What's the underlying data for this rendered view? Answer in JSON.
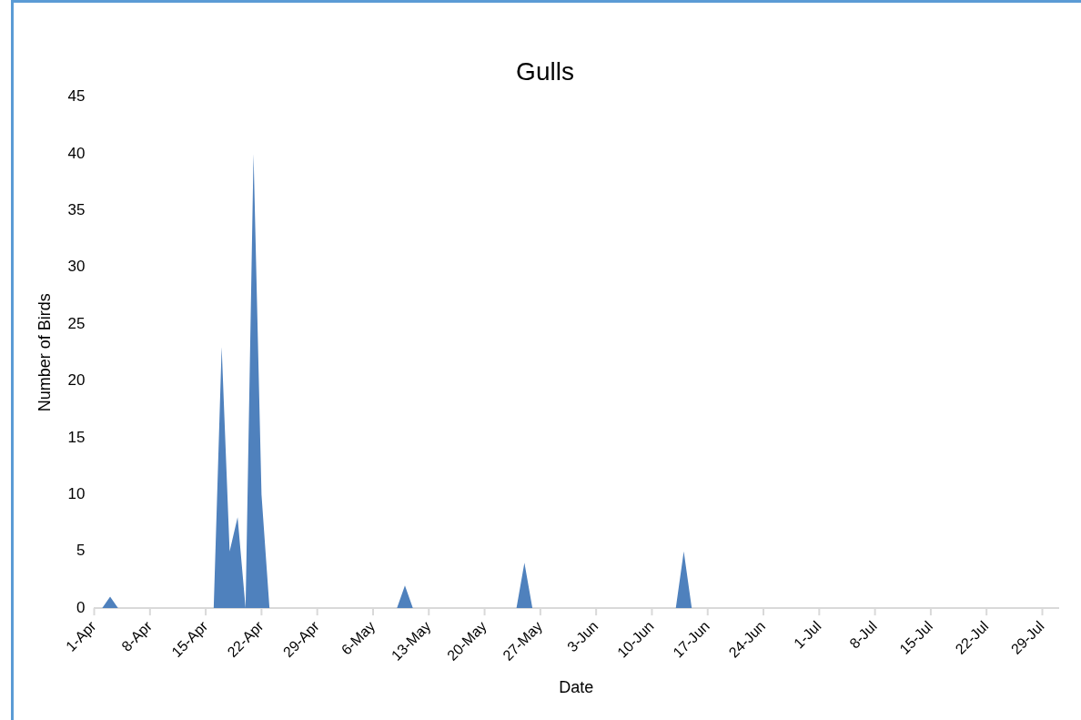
{
  "chart_data": {
    "type": "area",
    "title": "Gulls",
    "xlabel": "Date",
    "ylabel": "Number of Birds",
    "x": [
      "--04-01",
      "--04-02",
      "--04-03",
      "--04-04",
      "--04-16",
      "--04-17",
      "--04-18",
      "--04-19",
      "--04-20",
      "--04-21",
      "--04-22",
      "--04-23",
      "--05-09",
      "--05-10",
      "--05-11",
      "--05-24",
      "--05-25",
      "--05-26",
      "--06-13",
      "--06-14",
      "--06-15",
      "--07-29"
    ],
    "values": [
      0,
      0,
      1,
      0,
      0,
      23,
      5,
      8,
      0,
      40,
      10,
      0,
      0,
      2,
      0,
      0,
      4,
      0,
      0,
      5,
      0,
      0
    ],
    "color": "#4f81bd",
    "xlim": [
      "--04-01",
      "--07-31"
    ],
    "xticks": [
      {
        "value": "--04-01",
        "label": "1-Apr"
      },
      {
        "value": "--04-08",
        "label": "8-Apr"
      },
      {
        "value": "--04-15",
        "label": "15-Apr"
      },
      {
        "value": "--04-22",
        "label": "22-Apr"
      },
      {
        "value": "--04-29",
        "label": "29-Apr"
      },
      {
        "value": "--05-06",
        "label": "6-May"
      },
      {
        "value": "--05-13",
        "label": "13-May"
      },
      {
        "value": "--05-20",
        "label": "20-May"
      },
      {
        "value": "--05-27",
        "label": "27-May"
      },
      {
        "value": "--06-03",
        "label": "3-Jun"
      },
      {
        "value": "--06-10",
        "label": "10-Jun"
      },
      {
        "value": "--06-17",
        "label": "17-Jun"
      },
      {
        "value": "--06-24",
        "label": "24-Jun"
      },
      {
        "value": "--07-01",
        "label": "1-Jul"
      },
      {
        "value": "--07-08",
        "label": "8-Jul"
      },
      {
        "value": "--07-15",
        "label": "15-Jul"
      },
      {
        "value": "--07-22",
        "label": "22-Jul"
      },
      {
        "value": "--07-29",
        "label": "29-Jul"
      }
    ],
    "ylim": [
      0,
      45
    ],
    "yticks": [
      0,
      5,
      10,
      15,
      20,
      25,
      30,
      35,
      40,
      45
    ],
    "grid": false,
    "legend": false
  }
}
